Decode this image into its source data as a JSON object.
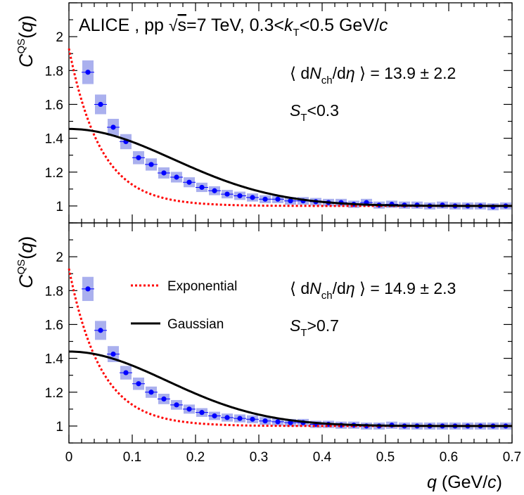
{
  "chart_data": [
    {
      "type": "scatter",
      "title": "ALICE , pp √s=7 TeV, 0.3<k_T<0.5 GeV/c",
      "ylabel": "C^QS(q)",
      "xlabel": "",
      "xlim": [
        0,
        0.7
      ],
      "ylim": [
        0.9,
        2.2
      ],
      "x_ticks": [
        "0",
        "0.1",
        "0.2",
        "0.3",
        "0.4",
        "0.5",
        "0.6",
        "0.7"
      ],
      "y_ticks": [
        "1",
        "1.2",
        "1.4",
        "1.6",
        "1.8",
        "2"
      ],
      "annotations": [
        "⟨ dN_ch/dη ⟩ = 13.9 ± 2.2",
        "S_T<0.3"
      ],
      "series": [
        {
          "kind": "data",
          "x": [
            0.03,
            0.05,
            0.07,
            0.09,
            0.11,
            0.13,
            0.15,
            0.17,
            0.19,
            0.21,
            0.23,
            0.25,
            0.27,
            0.29,
            0.31,
            0.33,
            0.35,
            0.37,
            0.39,
            0.41,
            0.43,
            0.45,
            0.47,
            0.49,
            0.51,
            0.53,
            0.55,
            0.57,
            0.59,
            0.61,
            0.63,
            0.65,
            0.67,
            0.69
          ],
          "y": [
            1.79,
            1.6,
            1.465,
            1.38,
            1.285,
            1.245,
            1.195,
            1.17,
            1.14,
            1.11,
            1.09,
            1.07,
            1.06,
            1.05,
            1.04,
            1.04,
            1.03,
            1.03,
            1.025,
            1.02,
            1.02,
            1.01,
            1.02,
            1.005,
            1.01,
            1.005,
            1.005,
            1.0,
            1.005,
            1.0,
            1.0,
            1.0,
            0.995,
            1.0
          ]
        },
        {
          "name": "Exponential",
          "kind": "fit",
          "style": "dotted",
          "color": "#ff0000",
          "model": "exponential",
          "a": 0.93,
          "b": 20.0
        },
        {
          "name": "Gaussian",
          "kind": "fit",
          "style": "solid",
          "color": "#000000",
          "model": "gaussian",
          "a": 0.455,
          "r": 0.165
        }
      ]
    },
    {
      "type": "scatter",
      "title": "",
      "ylabel": "C^QS(q)",
      "xlabel": "q (GeV/c)",
      "xlim": [
        0,
        0.7
      ],
      "ylim": [
        0.9,
        2.2
      ],
      "x_ticks": [
        "0",
        "0.1",
        "0.2",
        "0.3",
        "0.4",
        "0.5",
        "0.6",
        "0.7"
      ],
      "y_ticks": [
        "1",
        "1.2",
        "1.4",
        "1.6",
        "1.8",
        "2"
      ],
      "annotations": [
        "⟨ dN_ch/dη ⟩ = 14.9 ± 2.3",
        "S_T>0.7"
      ],
      "legend": [
        "Exponential",
        "Gaussian"
      ],
      "series": [
        {
          "kind": "data",
          "x": [
            0.03,
            0.05,
            0.07,
            0.09,
            0.11,
            0.13,
            0.15,
            0.17,
            0.19,
            0.21,
            0.23,
            0.25,
            0.27,
            0.29,
            0.31,
            0.33,
            0.35,
            0.37,
            0.39,
            0.41,
            0.43,
            0.45,
            0.47,
            0.49,
            0.51,
            0.53,
            0.55,
            0.57,
            0.59,
            0.61,
            0.63,
            0.65,
            0.67,
            0.69
          ],
          "y": [
            1.81,
            1.565,
            1.425,
            1.315,
            1.25,
            1.2,
            1.16,
            1.125,
            1.1,
            1.08,
            1.06,
            1.05,
            1.045,
            1.04,
            1.03,
            1.025,
            1.02,
            1.02,
            1.01,
            1.01,
            1.005,
            1.005,
            1.0,
            1.0,
            1.005,
            1.0,
            1.0,
            1.0,
            1.0,
            1.0,
            1.0,
            1.0,
            1.0,
            1.0
          ]
        },
        {
          "name": "Exponential",
          "kind": "fit",
          "style": "dotted",
          "color": "#ff0000",
          "model": "exponential",
          "a": 0.93,
          "b": 20.0
        },
        {
          "name": "Gaussian",
          "kind": "fit",
          "style": "solid",
          "color": "#000000",
          "model": "gaussian",
          "a": 0.44,
          "r": 0.155
        }
      ]
    }
  ],
  "colors": {
    "marker": "#0000ff",
    "systematic_box": "#aab0ee",
    "exponential": "#ff0000",
    "gaussian": "#000000"
  }
}
